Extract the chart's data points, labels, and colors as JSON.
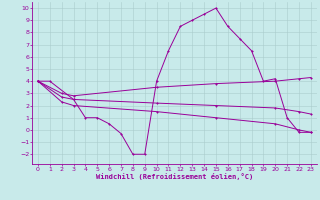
{
  "xlabel": "Windchill (Refroidissement éolien,°C)",
  "bg_color": "#c8eaea",
  "line_color": "#990099",
  "grid_color": "#aacccc",
  "xlim": [
    -0.5,
    23.5
  ],
  "ylim": [
    -2.8,
    10.5
  ],
  "xticks": [
    0,
    1,
    2,
    3,
    4,
    5,
    6,
    7,
    8,
    9,
    10,
    11,
    12,
    13,
    14,
    15,
    16,
    17,
    18,
    19,
    20,
    21,
    22,
    23
  ],
  "yticks": [
    -2,
    -1,
    0,
    1,
    2,
    3,
    4,
    5,
    6,
    7,
    8,
    9,
    10
  ],
  "line1_x": [
    0,
    1,
    3,
    4,
    5,
    6,
    7,
    8,
    9,
    10,
    11,
    12,
    13,
    14,
    15,
    16,
    17,
    18,
    19,
    20,
    21,
    22,
    23
  ],
  "line1_y": [
    4.0,
    4.0,
    2.5,
    1.0,
    1.0,
    0.5,
    -0.3,
    -2.0,
    -2.0,
    4.0,
    6.5,
    8.5,
    9.0,
    9.5,
    10.0,
    8.5,
    7.5,
    6.5,
    4.0,
    4.2,
    1.0,
    -0.2,
    -0.2
  ],
  "line2_x": [
    0,
    2,
    3,
    10,
    15,
    20,
    22,
    23
  ],
  "line2_y": [
    4.0,
    3.0,
    2.8,
    3.5,
    3.8,
    4.0,
    4.2,
    4.3
  ],
  "line3_x": [
    0,
    2,
    3,
    10,
    15,
    20,
    22,
    23
  ],
  "line3_y": [
    4.0,
    2.7,
    2.5,
    2.2,
    2.0,
    1.8,
    1.5,
    1.3
  ],
  "line4_x": [
    0,
    2,
    3,
    10,
    15,
    20,
    22,
    23
  ],
  "line4_y": [
    4.0,
    2.3,
    2.0,
    1.5,
    1.0,
    0.5,
    0.0,
    -0.2
  ]
}
